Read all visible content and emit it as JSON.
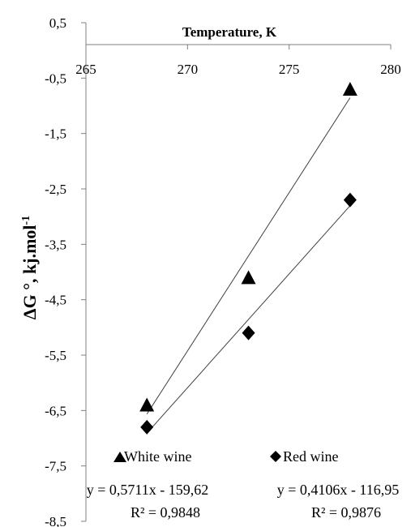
{
  "chart_data": {
    "type": "scatter",
    "title": "",
    "xlabel": "Temperature, K",
    "ylabel": "ΔG °, kj.mol",
    "ylabel_sup": "-1",
    "xlim": [
      265,
      280
    ],
    "ylim": [
      -8.5,
      0.5
    ],
    "x_ticks": [
      "265",
      "270",
      "275",
      "280"
    ],
    "y_ticks": [
      "0,5",
      "-0,5",
      "-1,5",
      "-2,5",
      "-3,5",
      "-4,5",
      "-5,5",
      "-6,5",
      "-7,5",
      "-8,5"
    ],
    "x_axis_position": "top",
    "grid": false,
    "series": [
      {
        "name": "White wine",
        "marker": "triangle",
        "color": "#000000",
        "x": [
          268,
          273,
          278
        ],
        "y": [
          -6.4,
          -4.1,
          -0.7
        ],
        "trendline": {
          "slope": 0.5711,
          "intercept": -159.62
        },
        "equation": "y = 0,5711x - 159,62",
        "r2": "R² = 0,9848"
      },
      {
        "name": "Red wine",
        "marker": "diamond",
        "color": "#000000",
        "x": [
          268,
          273,
          278
        ],
        "y": [
          -6.8,
          -5.1,
          -2.7
        ],
        "trendline": {
          "slope": 0.4106,
          "intercept": -116.95
        },
        "equation": "y = 0,4106x - 116,95",
        "r2": "R² = 0,9876"
      }
    ]
  }
}
